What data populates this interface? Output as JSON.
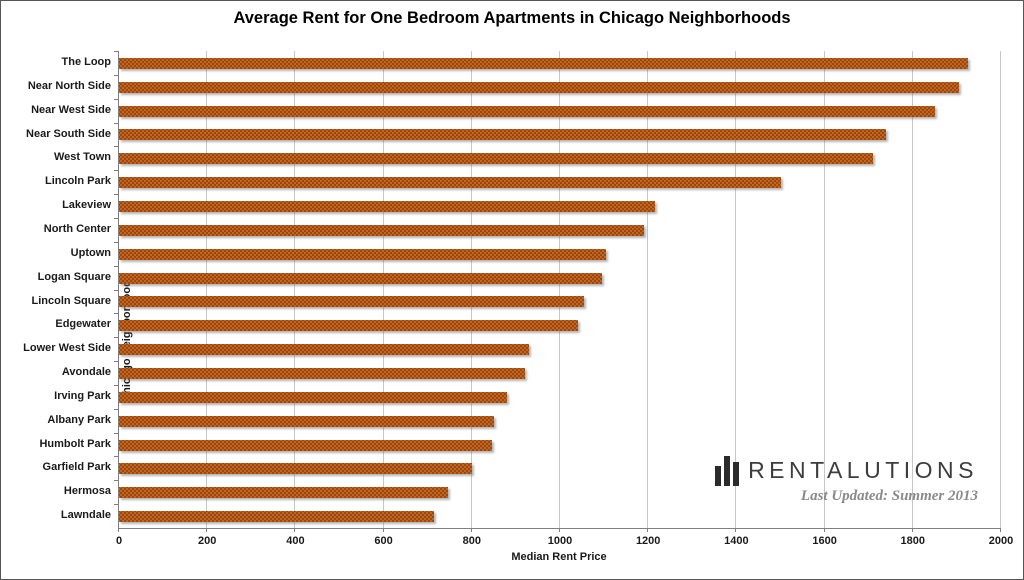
{
  "title": "Average Rent for One Bedroom Apartments in Chicago Neighborhoods",
  "chart_data": {
    "type": "bar",
    "orientation": "horizontal",
    "title": "Average Rent for One Bedroom Apartments in Chicago Neighborhoods",
    "xlabel": "Median Rent Price",
    "ylabel": "Chicago Neighborhood",
    "xlim": [
      0,
      2000
    ],
    "xticks": [
      0,
      200,
      400,
      600,
      800,
      1000,
      1200,
      1400,
      1600,
      1800,
      2000
    ],
    "grid": true,
    "legend": false,
    "categories": [
      "The Loop",
      "Near North Side",
      "Near West Side",
      "Near South Side",
      "West Town",
      "Lincoln Park",
      "Lakeview",
      "North Center",
      "Uptown",
      "Logan Square",
      "Lincoln Square",
      "Edgewater",
      "Lower West Side",
      "Avondale",
      "Irving Park",
      "Albany Park",
      "Humbolt Park",
      "Garfield Park",
      "Hermosa",
      "Lawndale"
    ],
    "values": [
      1925,
      1905,
      1850,
      1740,
      1710,
      1500,
      1215,
      1190,
      1105,
      1095,
      1055,
      1040,
      930,
      920,
      880,
      850,
      845,
      800,
      745,
      715
    ],
    "bar_color": "#C2661E",
    "bar_dot_color": "#8D3D10"
  },
  "branding": {
    "logo_icon": "bar-chart-icon",
    "logo_text": "RENTALUTIONS",
    "last_updated": "Last Updated: Summer 2013"
  }
}
